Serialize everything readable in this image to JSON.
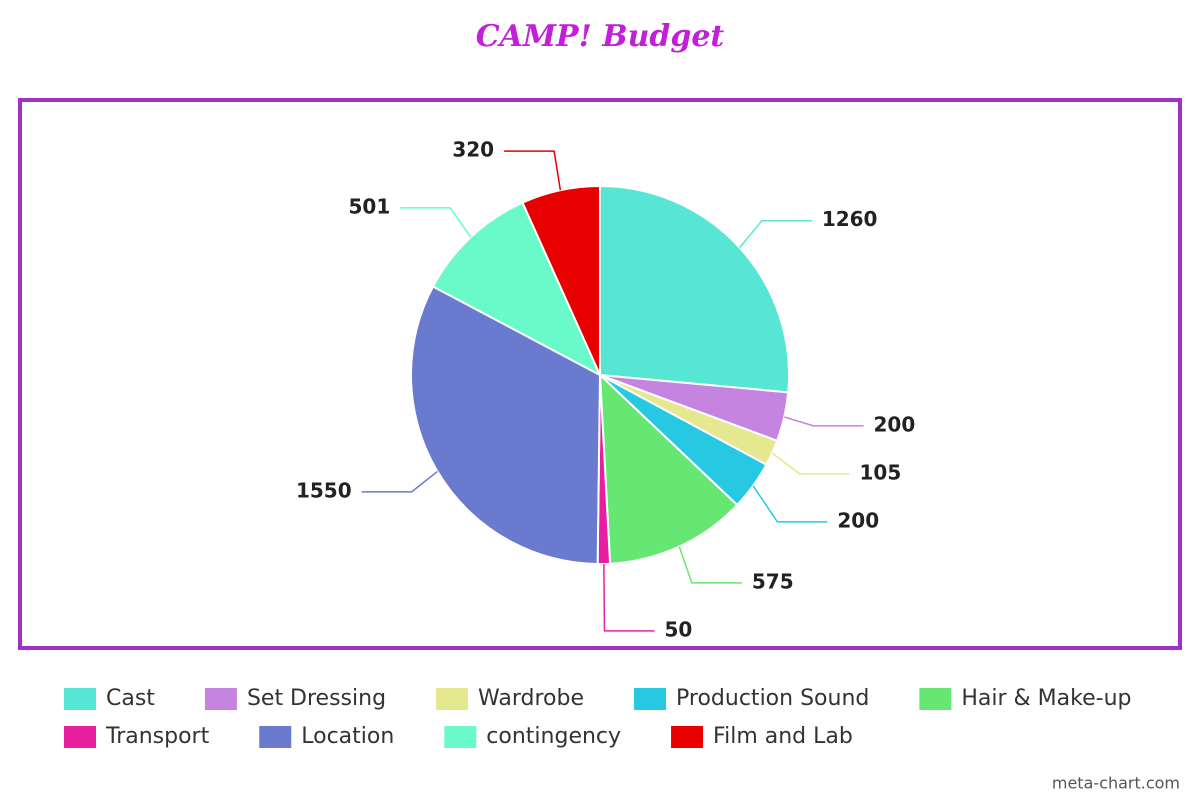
{
  "chart_data": {
    "type": "pie",
    "title": "CAMP! Budget",
    "categories": [
      "Cast",
      "Set Dressing",
      "Wardrobe",
      "Production Sound",
      "Hair & Make-up",
      "Transport",
      "Location",
      "contingency",
      "Film and Lab"
    ],
    "values": [
      1260,
      200,
      105,
      200,
      575,
      50,
      1550,
      501,
      320
    ],
    "colors": [
      "#57e6d3",
      "#c484e0",
      "#e6e88f",
      "#27c9e2",
      "#66e672",
      "#e81ea1",
      "#6a7bcf",
      "#6af9c8",
      "#e80000"
    ],
    "credit": "meta-chart.com"
  }
}
